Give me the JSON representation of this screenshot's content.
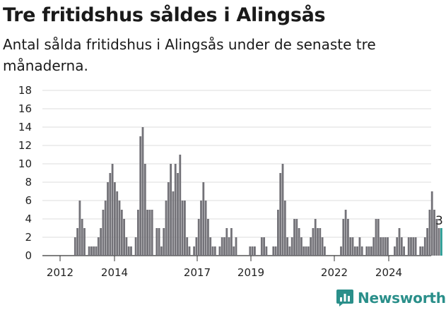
{
  "chart_data": {
    "type": "bar",
    "title": "Tre fritidshus såldes i Alingsås",
    "subtitle": "Antal sålda fritidshus i Alingsås under de senaste tre månaderna.",
    "xlabel": "",
    "ylabel": "",
    "ylim": [
      0,
      18
    ],
    "yticks": [
      0,
      2,
      4,
      6,
      8,
      10,
      12,
      14,
      16,
      18
    ],
    "xticks": [
      "2012",
      "2014",
      "2017",
      "2019",
      "2022",
      "2024"
    ],
    "grid": true,
    "legend": "none",
    "colors": {
      "bar": "#737278",
      "highlight": "#2a9d95",
      "grid": "#dedede"
    },
    "last_value_label": "3",
    "series": [
      {
        "values": [
          0,
          0,
          0,
          0,
          0,
          0,
          0,
          0,
          0,
          0,
          0,
          0,
          0,
          2,
          3,
          6,
          4,
          3,
          0,
          1,
          1,
          1,
          1,
          2,
          3,
          5,
          6,
          8,
          9,
          10,
          8,
          7,
          6,
          5,
          4,
          2,
          1,
          1,
          0,
          2,
          5,
          13,
          14,
          10,
          5,
          5,
          5,
          0,
          3,
          3,
          1,
          3,
          6,
          8,
          10,
          7,
          10,
          9,
          11,
          6,
          6,
          2,
          1,
          0,
          1,
          2,
          4,
          6,
          8,
          6,
          4,
          2,
          1,
          1,
          0,
          1,
          2,
          2,
          3,
          2,
          3,
          1,
          2,
          0,
          0,
          0,
          0,
          0,
          1,
          1,
          1,
          0,
          0,
          2,
          2,
          1,
          0,
          0,
          1,
          1,
          5,
          9,
          10,
          6,
          2,
          1,
          2,
          4,
          4,
          3,
          2,
          1,
          1,
          1,
          2,
          3,
          4,
          3,
          3,
          2,
          1,
          0,
          0,
          0,
          0,
          0,
          0,
          1,
          4,
          5,
          4,
          2,
          2,
          1,
          1,
          2,
          1,
          0,
          1,
          1,
          1,
          2,
          4,
          4,
          2,
          2,
          2,
          2,
          0,
          0,
          1,
          2,
          3,
          2,
          1,
          0,
          2,
          2,
          2,
          2,
          0,
          1,
          1,
          2,
          3,
          5,
          7,
          5,
          4,
          3,
          3
        ]
      }
    ]
  },
  "brand": {
    "name": "Newsworthy",
    "icon": "newsworthy-logo-icon"
  }
}
